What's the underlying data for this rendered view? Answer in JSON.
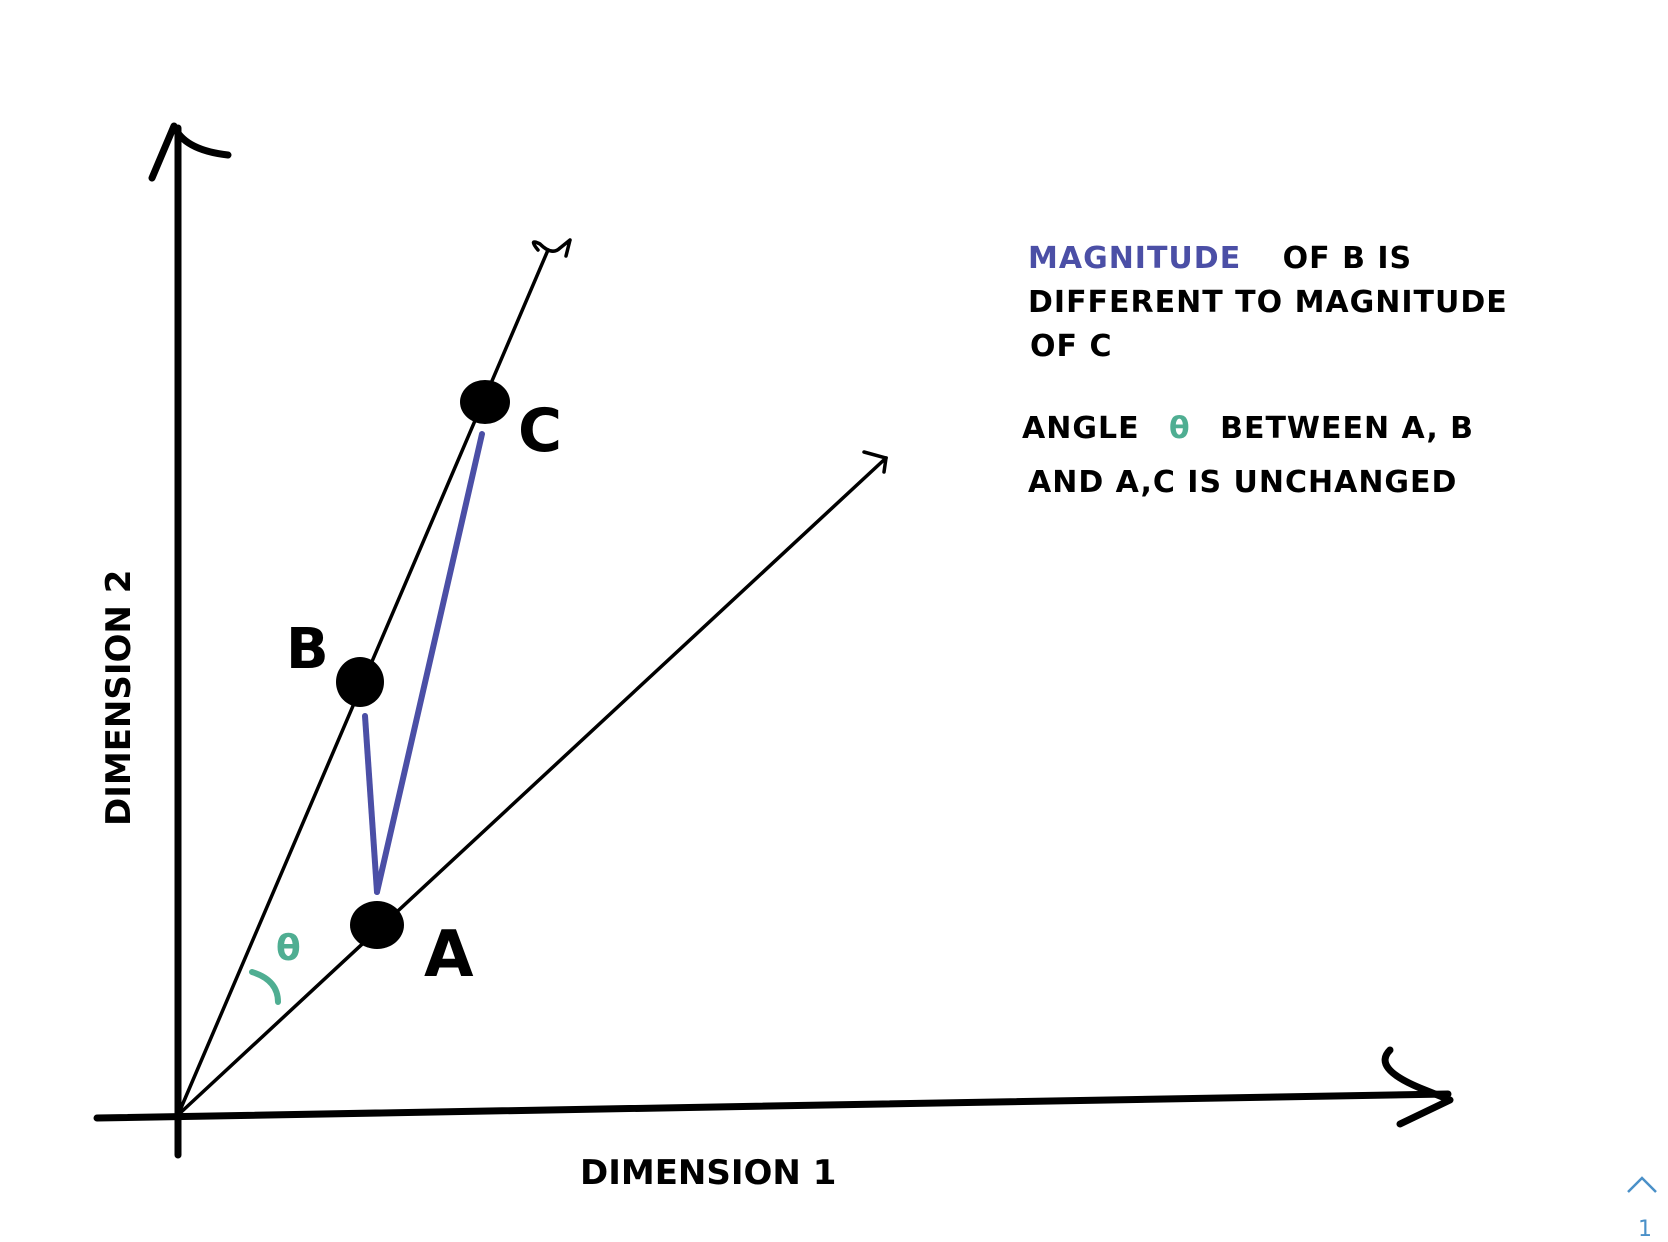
{
  "labels": {
    "axis_y": "DIMENSION 2",
    "axis_x": "DIMENSION 1",
    "point_a": "A",
    "point_b": "B",
    "point_c": "C",
    "theta": "θ"
  },
  "note": {
    "magnitude_word": "MAGNITUDE",
    "line1_rest": "OF B IS",
    "line2": "DIFFERENT TO MAGNITUDE",
    "line3": "OF C",
    "angle_word": "ANGLE",
    "theta": "θ",
    "line4_rest": "BETWEEN A, B",
    "line5": "AND A,C IS UNCHANGED"
  },
  "page_indicator": "1",
  "colors": {
    "ink": "#000000",
    "magnitude": "#4b4fa6",
    "angle": "#4fae92",
    "page_nav": "#4a90c8"
  },
  "icons": {
    "scroll_up": "chevron-up-icon"
  }
}
